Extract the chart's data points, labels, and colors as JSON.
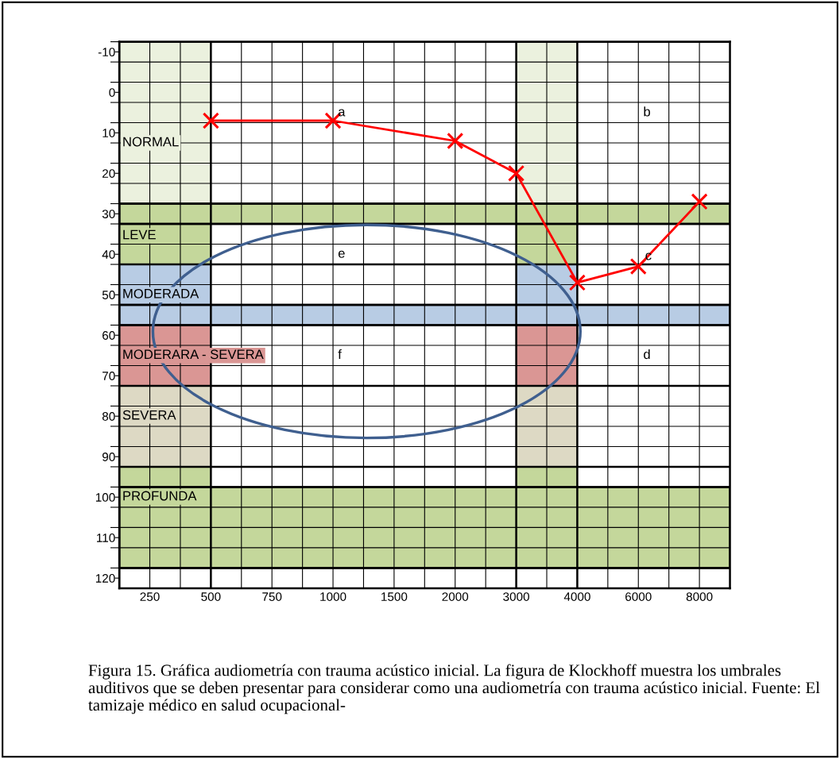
{
  "chart_data": {
    "type": "line",
    "categories": [
      "250",
      "500",
      "750",
      "1000",
      "1500",
      "2000",
      "3000",
      "4000",
      "6000",
      "8000"
    ],
    "series": [
      {
        "color": "#ff0000",
        "values": [
          null,
          7,
          null,
          7,
          null,
          12,
          20,
          47,
          43,
          27
        ]
      }
    ],
    "marker": "cross",
    "ylim": [
      122.5,
      -12.5
    ],
    "yticks": [
      -10,
      0,
      10,
      20,
      30,
      40,
      50,
      60,
      70,
      80,
      90,
      100,
      110,
      120,
      {
        "value": -12.5,
        "label": null
      },
      {
        "value": -7.5,
        "label": null
      },
      {
        "value": -2.5,
        "label": null
      },
      {
        "value": 2.5,
        "label": null
      },
      {
        "value": 7.5,
        "label": null
      },
      {
        "value": 12.5,
        "label": null
      },
      {
        "value": 17.5,
        "label": null
      },
      {
        "value": 22.5,
        "label": null
      },
      {
        "value": 27.5,
        "label": null
      },
      {
        "value": 32.5,
        "label": null
      },
      {
        "value": 37.5,
        "label": null
      },
      {
        "value": 42.5,
        "label": null
      },
      {
        "value": 47.5,
        "label": null
      },
      {
        "value": 52.5,
        "label": null
      },
      {
        "value": 57.5,
        "label": null
      },
      {
        "value": 62.5,
        "label": null
      },
      {
        "value": 67.5,
        "label": null
      },
      {
        "value": 72.5,
        "label": null
      },
      {
        "value": 77.5,
        "label": null
      },
      {
        "value": 82.5,
        "label": null
      },
      {
        "value": 87.5,
        "label": null
      },
      {
        "value": 92.5,
        "label": null
      },
      {
        "value": 97.5,
        "label": null
      },
      {
        "value": 102.5,
        "label": null
      },
      {
        "value": 107.5,
        "label": null
      },
      {
        "value": 112.5,
        "label": null
      },
      {
        "value": 117.5,
        "label": null
      }
    ],
    "grid": true,
    "bands": [
      {
        "axis": "y",
        "from": 27.5,
        "to": 32.5,
        "color": "#c4d79b"
      },
      {
        "axis": "y",
        "from": 52.5,
        "to": 57.5,
        "color": "#b8cce4"
      },
      {
        "axis": "y",
        "from": 97.5,
        "to": 117.5,
        "color": "#c4d79b"
      }
    ],
    "annotations": [
      "NORMAL",
      "LEVE",
      "MODERADA",
      "MODERARA - SEVERA",
      "SEVERA",
      "PROFUNDA",
      "a",
      "b",
      "c",
      "e",
      "f",
      "d",
      "Figura 15. Gráfica audiometría con trauma acústico inicial. La figura de Klockhoff muestra los umbrales auditivos que se deben presentar para considerar como una audiometría con trauma acústico inicial. Fuente: El tamizaje médico en salud ocupacional-"
    ]
  }
}
